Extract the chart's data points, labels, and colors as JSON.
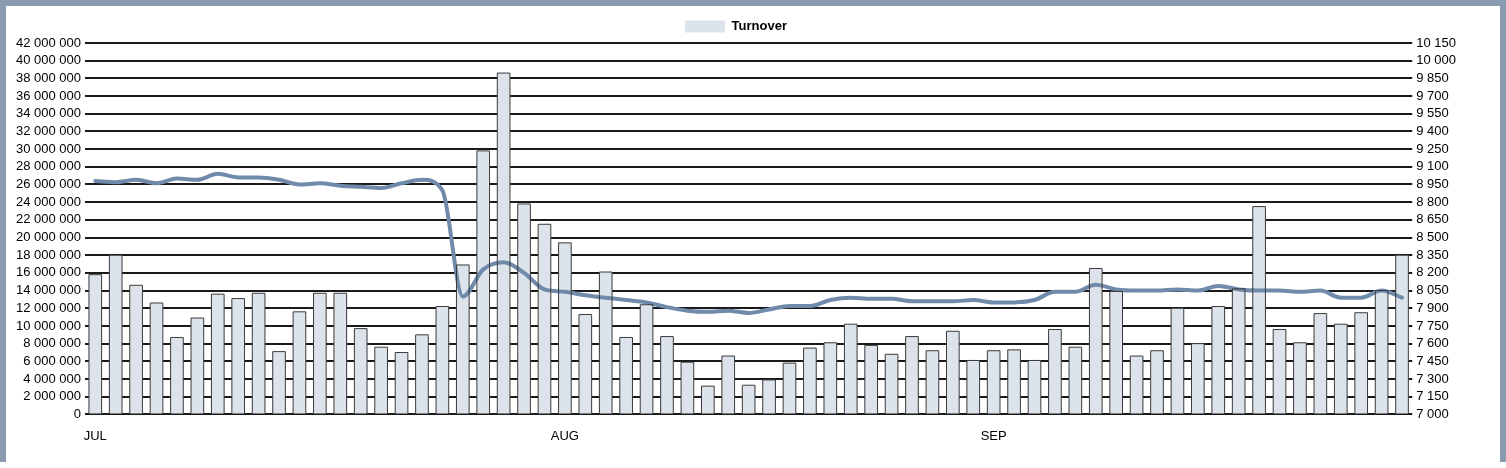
{
  "chart_data": {
    "type": "bar",
    "categories": [
      "JUL",
      null,
      null,
      null,
      null,
      null,
      null,
      null,
      null,
      null,
      null,
      null,
      null,
      null,
      null,
      null,
      null,
      null,
      null,
      null,
      null,
      null,
      null,
      "AUG",
      null,
      null,
      null,
      null,
      null,
      null,
      null,
      null,
      null,
      null,
      null,
      null,
      null,
      null,
      null,
      null,
      null,
      null,
      null,
      null,
      "SEP",
      null,
      null,
      null,
      null,
      null,
      null,
      null,
      null,
      null,
      null,
      null,
      null,
      null,
      null,
      null,
      null,
      null,
      null,
      null,
      null
    ],
    "series": [
      {
        "name": "Turnover",
        "color": "#dce3ea",
        "values": [
          15800000.0,
          18000000.0,
          14600000.0,
          12600000.0,
          8700000.0,
          10900000.0,
          13600000.0,
          13100000.0,
          13700000.0,
          7100000.0,
          11600000.0,
          13700000.0,
          13700000.0,
          9700000.0,
          7600000.0,
          7000000.0,
          9000000.0,
          12200000.0,
          16900000.0,
          29800000.0,
          38600000.0,
          23800000.0,
          21500000.0,
          19400000.0,
          11300000.0,
          16100000.0,
          8700000.0,
          12400000.0,
          8800000.0,
          5900000.0,
          3200000.0,
          6600000.0,
          3300000.0,
          3900000.0,
          5800000.0,
          7500000.0,
          8100000.0,
          10200000.0,
          7800000.0,
          6800000.0,
          8800000.0,
          7200000.0,
          9400000.0,
          6100000.0,
          7200000.0,
          7300000.0,
          6100000.0,
          9600000.0,
          7600000.0,
          16500000.0,
          13900000.0,
          6600000.0,
          7200000.0,
          12000000.0,
          8000000.0,
          12200000.0,
          14200000.0,
          23500000.0,
          9600000.0,
          8100000.0,
          11400000.0,
          10200000.0,
          11500000.0,
          14000000.0,
          18000000.0
        ]
      },
      {
        "type": "line",
        "axis": "y2",
        "color": "#6f8aab",
        "values": [
          8980,
          8970,
          8990,
          8960,
          9000,
          8990,
          9040,
          9010,
          9010,
          8990,
          8950,
          8960,
          8940,
          8930,
          8920,
          8960,
          8990,
          8900,
          8000,
          8230,
          8290,
          8200,
          8060,
          8040,
          8010,
          7990,
          7970,
          7950,
          7910,
          7880,
          7870,
          7880,
          7860,
          7890,
          7920,
          7920,
          7970,
          7990,
          7980,
          7980,
          7960,
          7960,
          7960,
          7970,
          7950,
          7950,
          7970,
          8040,
          8040,
          8100,
          8060,
          8050,
          8050,
          8060,
          8050,
          8090,
          8060,
          8050,
          8050,
          8040,
          8050,
          7990,
          7990,
          8050,
          7990
        ]
      }
    ],
    "ylim": [
      0,
      42000000
    ],
    "yticks": [
      {
        "value": 0,
        "label": "0"
      },
      {
        "value": 2000000,
        "label": "2 000 000"
      },
      {
        "value": 4000000,
        "label": "4 000 000"
      },
      {
        "value": 6000000,
        "label": "6 000 000"
      },
      {
        "value": 8000000,
        "label": "8 000 000"
      },
      {
        "value": 10000000,
        "label": "10 000 000"
      },
      {
        "value": 12000000,
        "label": "12 000 000"
      },
      {
        "value": 14000000,
        "label": "14 000 000"
      },
      {
        "value": 16000000,
        "label": "16 000 000"
      },
      {
        "value": 18000000,
        "label": "18 000 000"
      },
      {
        "value": 20000000,
        "label": "20 000 000"
      },
      {
        "value": 22000000,
        "label": "22 000 000"
      },
      {
        "value": 24000000,
        "label": "24 000 000"
      },
      {
        "value": 26000000,
        "label": "26 000 000"
      },
      {
        "value": 28000000,
        "label": "28 000 000"
      },
      {
        "value": 30000000,
        "label": "30 000 000"
      },
      {
        "value": 32000000,
        "label": "32 000 000"
      },
      {
        "value": 34000000,
        "label": "34 000 000"
      },
      {
        "value": 36000000,
        "label": "36 000 000"
      },
      {
        "value": 38000000,
        "label": "38 000 000"
      },
      {
        "value": 40000000,
        "label": "40 000 000"
      },
      {
        "value": 42000000,
        "label": "42 000 000"
      }
    ],
    "y2lim": [
      7000,
      10150
    ],
    "y2ticks": [
      {
        "value": 7000,
        "label": "7 000"
      },
      {
        "value": 7150,
        "label": "7 150"
      },
      {
        "value": 7300,
        "label": "7 300"
      },
      {
        "value": 7450,
        "label": "7 450"
      },
      {
        "value": 7600,
        "label": "7 600"
      },
      {
        "value": 7750,
        "label": "7 750"
      },
      {
        "value": 7900,
        "label": "7 900"
      },
      {
        "value": 8050,
        "label": "8 050"
      },
      {
        "value": 8200,
        "label": "8 200"
      },
      {
        "value": 8350,
        "label": "8 350"
      },
      {
        "value": 8500,
        "label": "8 500"
      },
      {
        "value": 8650,
        "label": "8 650"
      },
      {
        "value": 8800,
        "label": "8 800"
      },
      {
        "value": 8950,
        "label": "8 950"
      },
      {
        "value": 9100,
        "label": "9 100"
      },
      {
        "value": 9250,
        "label": "9 250"
      },
      {
        "value": 9400,
        "label": "9 400"
      },
      {
        "value": 9550,
        "label": "9 550"
      },
      {
        "value": 9700,
        "label": "9 700"
      },
      {
        "value": 9850,
        "label": "9 850"
      },
      {
        "value": 10000,
        "label": "10 000"
      },
      {
        "value": 10150,
        "label": "10 150"
      }
    ],
    "grid": "y",
    "legend": "top"
  }
}
